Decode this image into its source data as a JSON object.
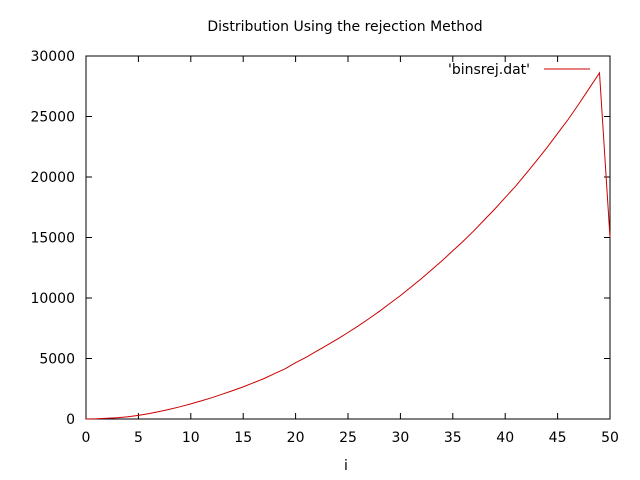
{
  "chart_data": {
    "type": "line",
    "title": "Distribution Using the rejection Method",
    "xlabel": "i",
    "ylabel": "",
    "xlim": [
      0,
      50
    ],
    "ylim": [
      0,
      30000
    ],
    "xticks": [
      0,
      5,
      10,
      15,
      20,
      25,
      30,
      35,
      40,
      45,
      50
    ],
    "yticks": [
      0,
      5000,
      10000,
      15000,
      20000,
      25000,
      30000
    ],
    "grid": false,
    "legend_position": "top-right",
    "series": [
      {
        "name": "'binsrej.dat'",
        "color": "#cc0000",
        "x": [
          0,
          1,
          2,
          3,
          4,
          5,
          6,
          7,
          8,
          9,
          10,
          11,
          12,
          13,
          14,
          15,
          16,
          17,
          18,
          19,
          20,
          21,
          22,
          23,
          24,
          25,
          26,
          27,
          28,
          29,
          30,
          31,
          32,
          33,
          34,
          35,
          36,
          37,
          38,
          39,
          40,
          41,
          42,
          43,
          44,
          45,
          46,
          47,
          48,
          49,
          50
        ],
        "y": [
          0,
          20,
          60,
          100,
          180,
          300,
          450,
          620,
          810,
          1020,
          1250,
          1500,
          1760,
          2050,
          2350,
          2650,
          3000,
          3350,
          3750,
          4150,
          4650,
          5100,
          5600,
          6100,
          6600,
          7150,
          7700,
          8300,
          8900,
          9550,
          10200,
          10900,
          11600,
          12350,
          13100,
          13900,
          14700,
          15550,
          16450,
          17350,
          18300,
          19250,
          20300,
          21350,
          22450,
          23600,
          24750,
          26000,
          27300,
          28600,
          15000
        ]
      }
    ]
  }
}
